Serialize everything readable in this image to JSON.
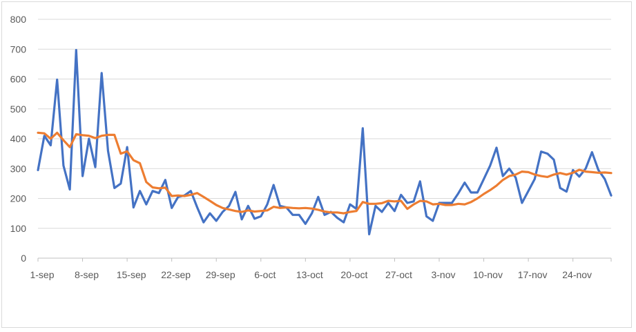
{
  "chart_data": {
    "type": "line",
    "title": "",
    "xlabel": "",
    "ylabel": "",
    "ylim": [
      0,
      800
    ],
    "y_ticks": [
      0,
      100,
      200,
      300,
      400,
      500,
      600,
      700,
      800
    ],
    "x_tick_labels": [
      "1-sep",
      "8-sep",
      "15-sep",
      "22-sep",
      "29-sep",
      "6-oct",
      "13-oct",
      "20-oct",
      "27-oct",
      "3-nov",
      "10-nov",
      "17-nov",
      "24-nov"
    ],
    "x_tick_every_n_points": 7,
    "grid": "horizontal",
    "legend": "none",
    "series": [
      {
        "color": "#4472C4",
        "values": [
          295,
          410,
          378,
          598,
          310,
          230,
          697,
          275,
          400,
          305,
          620,
          360,
          235,
          250,
          372,
          170,
          225,
          180,
          225,
          218,
          262,
          168,
          205,
          210,
          225,
          170,
          120,
          150,
          125,
          155,
          175,
          222,
          130,
          175,
          132,
          140,
          180,
          245,
          175,
          170,
          145,
          145,
          115,
          150,
          205,
          145,
          155,
          135,
          120,
          180,
          165,
          435,
          80,
          175,
          155,
          185,
          158,
          212,
          185,
          190,
          257,
          140,
          125,
          185,
          185,
          185,
          217,
          253,
          220,
          220,
          265,
          310,
          370,
          275,
          300,
          270,
          185,
          225,
          265,
          357,
          350,
          330,
          235,
          223,
          295,
          273,
          300,
          355,
          295,
          265,
          210
        ]
      },
      {
        "color": "#ED7D31",
        "values": [
          420,
          418,
          400,
          420,
          395,
          372,
          415,
          412,
          410,
          402,
          410,
          413,
          413,
          350,
          358,
          328,
          318,
          255,
          237,
          234,
          236,
          208,
          210,
          208,
          212,
          218,
          205,
          192,
          178,
          168,
          163,
          158,
          155,
          160,
          156,
          158,
          160,
          172,
          168,
          170,
          168,
          167,
          168,
          166,
          162,
          156,
          153,
          153,
          150,
          155,
          158,
          188,
          182,
          182,
          184,
          192,
          190,
          192,
          165,
          180,
          192,
          190,
          180,
          182,
          178,
          178,
          182,
          180,
          188,
          200,
          215,
          228,
          243,
          262,
          275,
          280,
          290,
          288,
          280,
          275,
          272,
          280,
          285,
          280,
          286,
          296,
          290,
          288,
          286,
          287,
          285
        ]
      }
    ]
  }
}
